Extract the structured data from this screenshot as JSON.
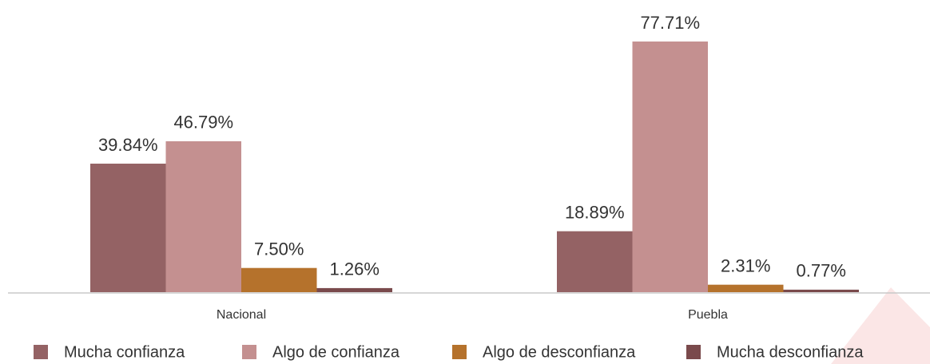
{
  "chart_data": {
    "type": "bar",
    "categories": [
      "Nacional",
      "Puebla"
    ],
    "series": [
      {
        "name": "Mucha confianza",
        "color": "#946264",
        "values": [
          39.84,
          18.89
        ],
        "value_labels": [
          "39.84%",
          "18.89%"
        ]
      },
      {
        "name": "Algo de confianza",
        "color": "#c49090",
        "values": [
          46.79,
          77.71
        ],
        "value_labels": [
          "46.79%",
          "77.71%"
        ]
      },
      {
        "name": "Algo de desconfianza",
        "color": "#b5722c",
        "values": [
          7.5,
          2.31
        ],
        "value_labels": [
          "7.50%",
          "2.31%"
        ]
      },
      {
        "name": "Mucha desconfianza",
        "color": "#7a4a4c",
        "values": [
          1.26,
          0.77
        ],
        "value_labels": [
          "1.26%",
          "0.77%"
        ]
      }
    ],
    "legend": "bottom"
  }
}
